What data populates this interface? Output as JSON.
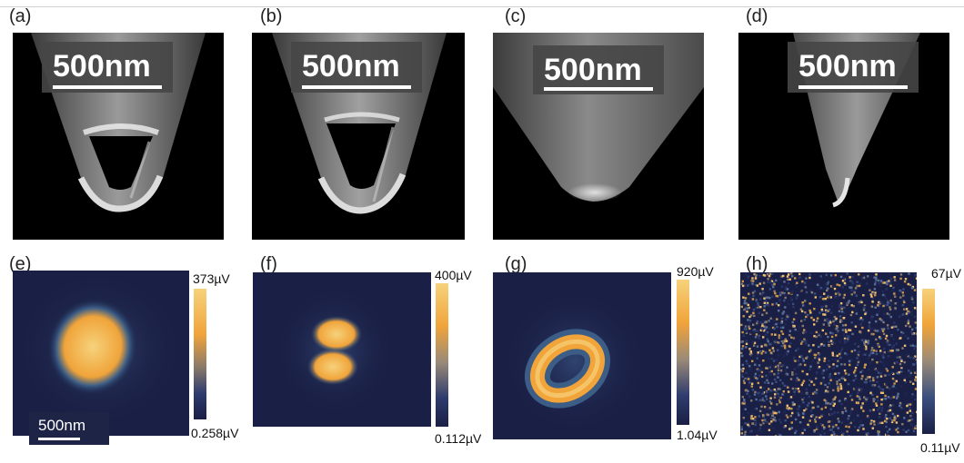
{
  "panel_labels": [
    "(a)",
    "(b)",
    "(c)",
    "(d)",
    "(e)",
    "(f)",
    "(g)",
    "(h)"
  ],
  "sem_scale_bar": "500nm",
  "map_scale_bar": "500nm",
  "colorbars": {
    "e": {
      "max": "373µV",
      "min": "0.258µV"
    },
    "f": {
      "max": "400µV",
      "min": "0.112µV"
    },
    "g": {
      "max": "920µV",
      "min": "1.04µV"
    },
    "h": {
      "max": "67µV",
      "min": "0.11µV"
    }
  },
  "colors": {
    "map_background": "#1a1f45",
    "hot": "#f0a43a",
    "hot_light": "#f6d27c",
    "halo": "#3b5d86"
  }
}
